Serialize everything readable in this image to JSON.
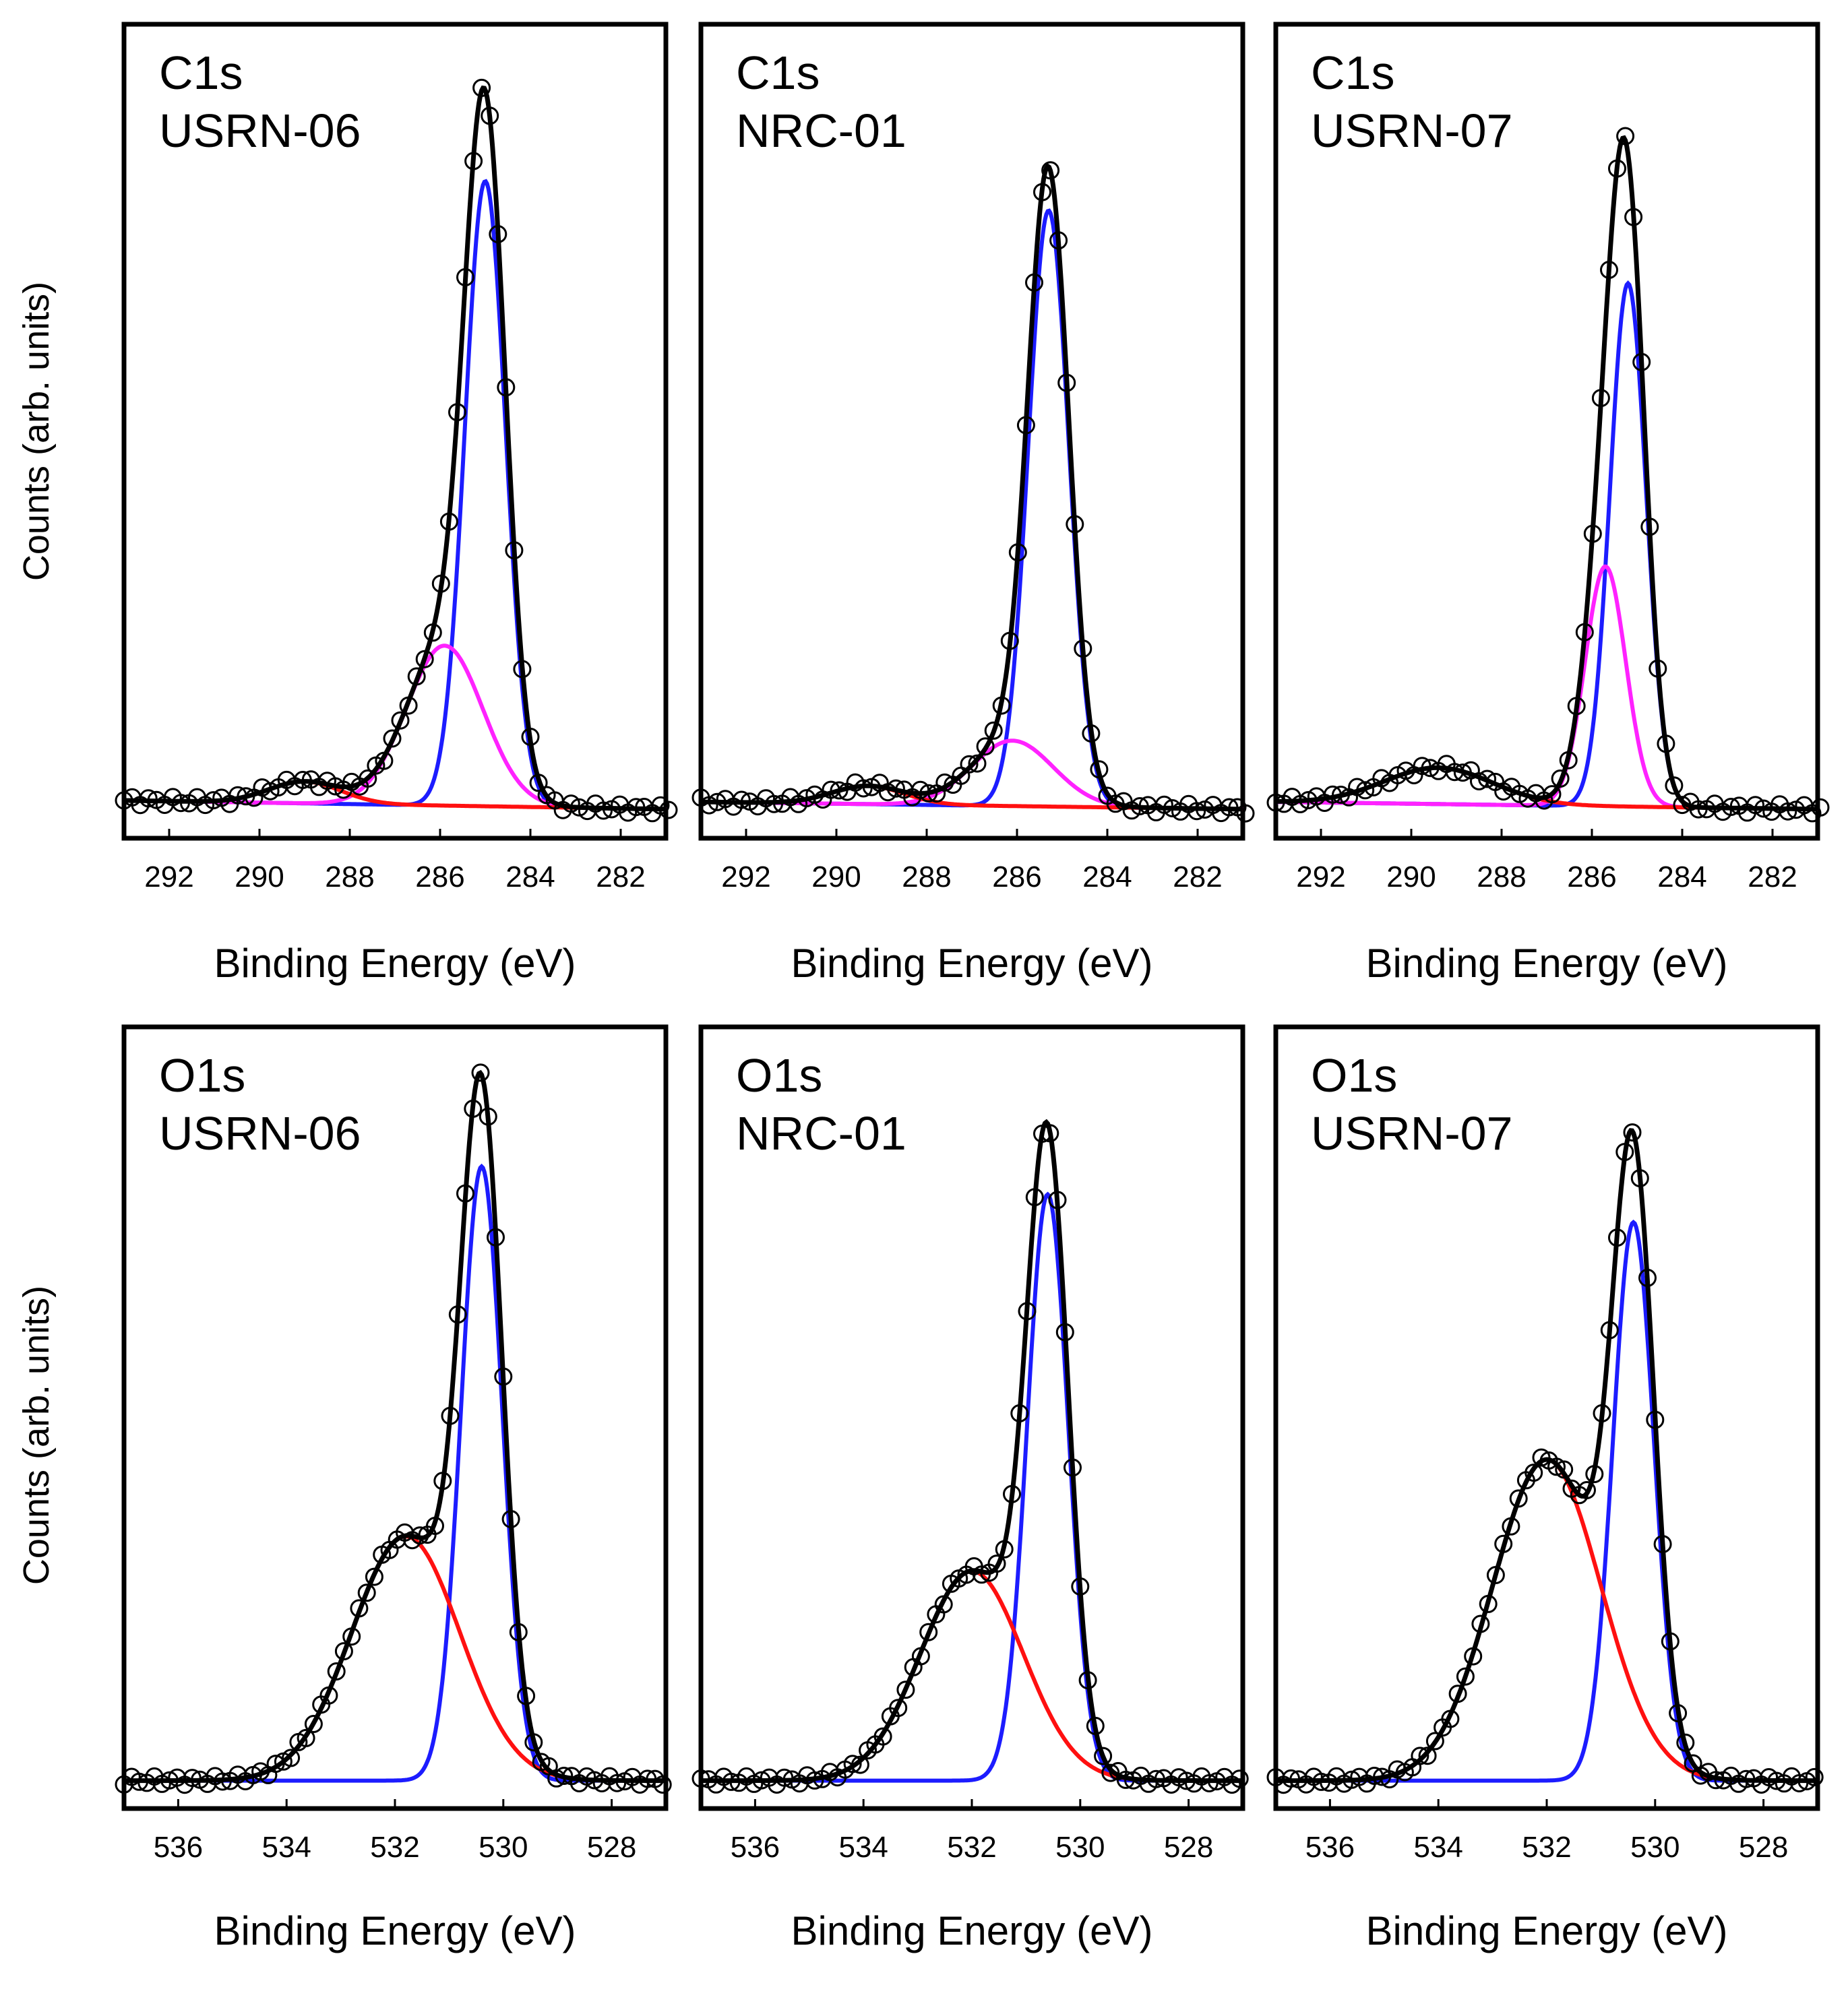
{
  "figure": {
    "ylabel_top": "Counts (arb. units)",
    "ylabel_bottom": "Counts (arb. units)",
    "colors": {
      "data": "#000000",
      "fit": "#000000",
      "blue": "#1c1cff",
      "magenta": "#ff22ff",
      "red": "#ff1010",
      "frame": "#000000"
    }
  },
  "chart_data": [
    {
      "type": "line",
      "title": "C1s",
      "subtitle": "USRN-06",
      "xlabel": "Binding Energy (eV)",
      "ylabel": "Counts (arb. units)",
      "xlim": [
        293,
        281
      ],
      "ylim": [
        -0.04,
        1.08
      ],
      "xticks": [
        292,
        290,
        288,
        286,
        284,
        282
      ],
      "grid": false,
      "background": {
        "start": 0.012,
        "end": 0.0
      },
      "series": [
        {
          "name": "component-blue",
          "color": "#1c1cff",
          "center": 285.0,
          "height": 0.86,
          "sigmaL": 0.45,
          "sigmaR": 0.45
        },
        {
          "name": "component-magenta",
          "color": "#ff22ff",
          "center": 285.9,
          "height": 0.22,
          "sigmaL": 0.85,
          "sigmaR": 0.85
        },
        {
          "name": "component-red",
          "color": "#ff1010",
          "center": 289.0,
          "height": 0.03,
          "sigmaL": 0.8,
          "sigmaR": 0.8
        }
      ],
      "measured": {
        "from": 293,
        "to": 281,
        "step": 0.18
      }
    },
    {
      "type": "line",
      "title": "C1s",
      "subtitle": "NRC-01",
      "xlabel": "Binding Energy (eV)",
      "ylabel": "Counts (arb. units)",
      "xlim": [
        293,
        281
      ],
      "ylim": [
        -0.04,
        1.08
      ],
      "xticks": [
        292,
        290,
        288,
        286,
        284,
        282
      ],
      "grid": false,
      "background": {
        "start": 0.01,
        "end": 0.0
      },
      "series": [
        {
          "name": "component-blue",
          "color": "#1c1cff",
          "center": 285.3,
          "height": 0.82,
          "sigmaL": 0.45,
          "sigmaR": 0.45
        },
        {
          "name": "component-magenta",
          "color": "#ff22ff",
          "center": 286.1,
          "height": 0.09,
          "sigmaL": 0.9,
          "sigmaR": 0.9
        },
        {
          "name": "component-red",
          "color": "#ff1010",
          "center": 289.3,
          "height": 0.025,
          "sigmaL": 0.8,
          "sigmaR": 0.8
        }
      ],
      "measured": {
        "from": 293,
        "to": 281,
        "step": 0.18
      }
    },
    {
      "type": "line",
      "title": "C1s",
      "subtitle": "USRN-07",
      "xlabel": "Binding Energy (eV)",
      "ylabel": "Counts (arb. units)",
      "xlim": [
        293,
        281
      ],
      "ylim": [
        -0.04,
        1.08
      ],
      "xticks": [
        292,
        290,
        288,
        286,
        284,
        282
      ],
      "grid": false,
      "background": {
        "start": 0.01,
        "end": 0.0
      },
      "series": [
        {
          "name": "component-blue",
          "color": "#1c1cff",
          "center": 285.2,
          "height": 0.72,
          "sigmaL": 0.4,
          "sigmaR": 0.4
        },
        {
          "name": "component-magenta",
          "color": "#ff22ff",
          "center": 285.7,
          "height": 0.33,
          "sigmaL": 0.45,
          "sigmaR": 0.45
        },
        {
          "name": "component-red",
          "color": "#ff1010",
          "center": 289.4,
          "height": 0.05,
          "sigmaL": 1.2,
          "sigmaR": 1.2
        }
      ],
      "measured": {
        "from": 293,
        "to": 281,
        "step": 0.18
      }
    },
    {
      "type": "line",
      "title": "O1s",
      "subtitle": "USRN-06",
      "xlabel": "Binding Energy (eV)",
      "ylabel": "Counts (arb. units)",
      "xlim": [
        537,
        527
      ],
      "ylim": [
        -0.04,
        1.08
      ],
      "xticks": [
        536,
        534,
        532,
        530,
        528
      ],
      "grid": false,
      "background": {
        "start": 0.0,
        "end": 0.0
      },
      "series": [
        {
          "name": "component-blue",
          "color": "#1c1cff",
          "center": 530.4,
          "height": 0.88,
          "sigmaL": 0.38,
          "sigmaR": 0.48
        },
        {
          "name": "component-red",
          "color": "#ff1010",
          "center": 531.8,
          "height": 0.35,
          "sigmaL": 1.0,
          "sigmaR": 0.78
        }
      ],
      "measured": {
        "from": 537,
        "to": 527,
        "step": 0.14
      }
    },
    {
      "type": "line",
      "title": "O1s",
      "subtitle": "NRC-01",
      "xlabel": "Binding Energy (eV)",
      "ylabel": "Counts (arb. units)",
      "xlim": [
        537,
        527
      ],
      "ylim": [
        -0.04,
        1.08
      ],
      "xticks": [
        536,
        534,
        532,
        530,
        528
      ],
      "grid": false,
      "background": {
        "start": 0.0,
        "end": 0.0
      },
      "series": [
        {
          "name": "component-blue",
          "color": "#1c1cff",
          "center": 530.6,
          "height": 0.84,
          "sigmaL": 0.38,
          "sigmaR": 0.48
        },
        {
          "name": "component-red",
          "color": "#ff1010",
          "center": 532.0,
          "height": 0.3,
          "sigmaL": 0.95,
          "sigmaR": 0.7
        }
      ],
      "measured": {
        "from": 537,
        "to": 527,
        "step": 0.14
      }
    },
    {
      "type": "line",
      "title": "O1s",
      "subtitle": "USRN-07",
      "xlabel": "Binding Energy (eV)",
      "ylabel": "Counts (arb. units)",
      "xlim": [
        537,
        527
      ],
      "ylim": [
        -0.04,
        1.08
      ],
      "xticks": [
        536,
        534,
        532,
        530,
        528
      ],
      "grid": false,
      "background": {
        "start": 0.0,
        "end": 0.0
      },
      "series": [
        {
          "name": "component-blue",
          "color": "#1c1cff",
          "center": 530.4,
          "height": 0.8,
          "sigmaL": 0.38,
          "sigmaR": 0.48
        },
        {
          "name": "component-red",
          "color": "#ff1010",
          "center": 532.0,
          "height": 0.46,
          "sigmaL": 1.0,
          "sigmaR": 0.7
        }
      ],
      "measured": {
        "from": 537,
        "to": 527,
        "step": 0.14
      }
    }
  ]
}
